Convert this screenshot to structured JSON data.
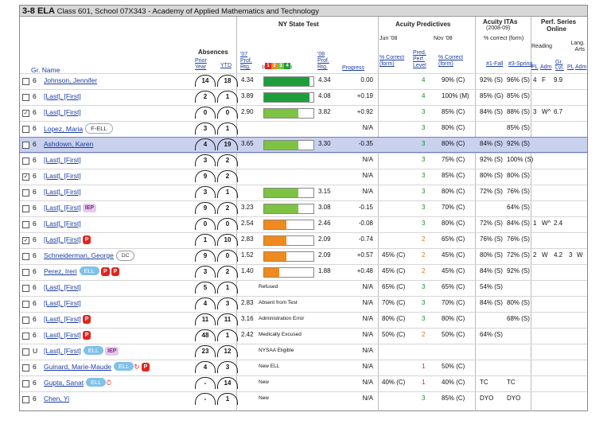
{
  "title": {
    "grade": "3-8 ELA",
    "detail": "Class 601, School 07X343 - Academy of Applied Mathematics and Technology"
  },
  "headers": {
    "nys": "NY State Test",
    "acuity_pred": "Acuity Predictives",
    "acuity_itas": "Acuity ITAs",
    "itas_years": "(2008-09)",
    "itas_sub": "% correct  (form)",
    "perf": "Perf. Series",
    "perf2": "Online",
    "absences": "Absences",
    "prior_year": "Prior Year",
    "ytd": "YTD",
    "gr_name": "Gr. Name",
    "y07": "'07",
    "y08": "'08",
    "prof_rtg": "Prof. Rtg.",
    "progress": "Progress",
    "scale": "10  20  30  40 4.5",
    "jun08": "Jun '08",
    "nov08": "Nov '08",
    "pct_correct": "% Correct (form)",
    "pred_perf": "Pred. Perf. Level",
    "pct_correct2": "% Correct (form)",
    "fall": "#1-Fall",
    "spring": "#3-Spring",
    "reading": "Reading",
    "lang_arts": "Lang. Arts",
    "pl": "PL",
    "adm": "Adm",
    "gr_lvl": "Gr. Lvl.",
    "pl2": "PL",
    "adm2": "Adm",
    "legend": [
      "1",
      "2",
      "3",
      "4"
    ]
  },
  "rows": [
    {
      "cb": "",
      "gr": "6",
      "name": "Johnson, Jennifer",
      "tags": [],
      "prior": "14",
      "ytd": "18",
      "r07": "4.34",
      "bar": "green4",
      "r08": "4.34",
      "prog": "0.00",
      "jun": "",
      "lvl": "4",
      "nov": "90% (C)",
      "fall": "92% (S)",
      "spring": "96% (S)",
      "pl": "4",
      "adm": "F",
      "grl": "9.9",
      "pl2": "",
      "adm2": ""
    },
    {
      "cb": "",
      "gr": "6",
      "name": "[Last], [First]",
      "tags": [],
      "prior": "2",
      "ytd": "1",
      "r07": "3.89",
      "bar": "green4",
      "r08": "4.08",
      "prog": "+0.19",
      "jun": "",
      "lvl": "4",
      "nov": "100% (M)",
      "fall": "85% (G)",
      "spring": "85% (S)",
      "pl": "",
      "adm": "",
      "grl": "",
      "pl2": "",
      "adm2": ""
    },
    {
      "cb": "☑",
      "gr": "6",
      "name": "[Last], [First]",
      "tags": [],
      "prior": "0",
      "ytd": "0",
      "r07": "2.90",
      "bar": "green3",
      "r08": "3.82",
      "prog": "+0.92",
      "jun": "",
      "lvl": "3",
      "nov": "85% (C)",
      "fall": "84% (S)",
      "spring": "88% (S)",
      "pl": "3",
      "adm": "W^",
      "grl": "6.7",
      "pl2": "",
      "adm2": ""
    },
    {
      "cb": "",
      "gr": "6",
      "name": "Lopez, Maria",
      "tags": [
        "F-ELL"
      ],
      "prior": "3",
      "ytd": "1",
      "r07": "",
      "bar": "",
      "r08": "",
      "prog": "N/A",
      "jun": "",
      "lvl": "3",
      "nov": "80% (C)",
      "fall": "",
      "spring": "85% (S)",
      "pl": "",
      "adm": "",
      "grl": "",
      "pl2": "",
      "adm2": ""
    },
    {
      "cb": "",
      "gr": "6",
      "name": "Ashdown, Karen",
      "tags": [],
      "prior": "4",
      "ytd": "19",
      "r07": "3.65",
      "bar": "green3",
      "r08": "3.30",
      "prog": "-0.35",
      "jun": "",
      "lvl": "3",
      "nov": "80% (C)",
      "fall": "84% (S)",
      "spring": "92% (S)",
      "pl": "",
      "adm": "",
      "grl": "",
      "pl2": "",
      "adm2": "",
      "sel": true
    },
    {
      "cb": "",
      "gr": "6",
      "name": "[Last], [First]",
      "tags": [],
      "prior": "3",
      "ytd": "2",
      "r07": "",
      "bar": "",
      "r08": "",
      "prog": "N/A",
      "jun": "",
      "lvl": "3",
      "nov": "75% (C)",
      "fall": "92% (S)",
      "spring": "100% (S)",
      "pl": "",
      "adm": "",
      "grl": "",
      "pl2": "",
      "adm2": ""
    },
    {
      "cb": "☑",
      "gr": "6",
      "name": "[Last], [First]",
      "tags": [],
      "prior": "9",
      "ytd": "2",
      "r07": "",
      "bar": "",
      "r08": "",
      "prog": "N/A",
      "jun": "",
      "lvl": "3",
      "nov": "85% (C)",
      "fall": "80% (S)",
      "spring": "80% (S)",
      "pl": "",
      "adm": "",
      "grl": "",
      "pl2": "",
      "adm2": ""
    },
    {
      "cb": "",
      "gr": "6",
      "name": "[Last], [First]",
      "tags": [],
      "prior": "3",
      "ytd": "1",
      "r07": "",
      "bar": "green3",
      "r08": "3.15",
      "prog": "N/A",
      "jun": "",
      "lvl": "3",
      "nov": "80% (C)",
      "fall": "72% (S)",
      "spring": "76% (S)",
      "pl": "",
      "adm": "",
      "grl": "",
      "pl2": "",
      "adm2": ""
    },
    {
      "cb": "",
      "gr": "6",
      "name": "[Last], [First]",
      "tags": [
        "IEP"
      ],
      "prior": "9",
      "ytd": "2",
      "r07": "3.23",
      "bar": "green3",
      "r08": "3.08",
      "prog": "-0.15",
      "jun": "",
      "lvl": "3",
      "nov": "70% (C)",
      "fall": "",
      "spring": "64% (S)",
      "pl": "",
      "adm": "",
      "grl": "",
      "pl2": "",
      "adm2": ""
    },
    {
      "cb": "",
      "gr": "6",
      "name": "[Last], [First]",
      "tags": [],
      "prior": "0",
      "ytd": "0",
      "r07": "2.54",
      "bar": "orange2",
      "r08": "2.46",
      "prog": "-0.08",
      "jun": "",
      "lvl": "3",
      "nov": "80% (C)",
      "fall": "72% (S)",
      "spring": "84% (S)",
      "pl": "1",
      "adm": "W^",
      "grl": "2.4",
      "pl2": "",
      "adm2": ""
    },
    {
      "cb": "☑",
      "gr": "6",
      "name": "[Last], [First]",
      "tags": [
        "P"
      ],
      "prior": "1",
      "ytd": "10",
      "r07": "2.83",
      "bar": "orange2",
      "r08": "2.09",
      "prog": "-0.74",
      "jun": "",
      "lvl": "2",
      "nov": "65% (C)",
      "fall": "76% (S)",
      "spring": "76% (S)",
      "pl": "",
      "adm": "",
      "grl": "",
      "pl2": "",
      "adm2": ""
    },
    {
      "cb": "",
      "gr": "6",
      "name": "Schneiderman, George",
      "tags": [
        "DC"
      ],
      "prior": "9",
      "ytd": "0",
      "r07": "1.52",
      "bar": "orange2",
      "r08": "2.09",
      "prog": "+0.57",
      "jun": "45% (C)",
      "lvl": "2",
      "nov": "45% (C)",
      "fall": "80% (S)",
      "spring": "72% (S)",
      "pl": "2",
      "adm": "W",
      "grl": "4.2",
      "pl2": "3",
      "adm2": "W"
    },
    {
      "cb": "",
      "gr": "6",
      "name": "Perez, Ireri",
      "tags": [
        "ELL",
        "P",
        "P"
      ],
      "prior": "3",
      "ytd": "2",
      "r07": "1.40",
      "bar": "orange1",
      "r08": "1.88",
      "prog": "+0.48",
      "jun": "45% (C)",
      "lvl": "2",
      "nov": "45% (C)",
      "fall": "84% (S)",
      "spring": "92% (S)",
      "pl": "",
      "adm": "",
      "grl": "",
      "pl2": "",
      "adm2": ""
    },
    {
      "cb": "",
      "gr": "6",
      "name": "[Last], [First]",
      "tags": [],
      "prior": "5",
      "ytd": "1",
      "r07": "",
      "bar": "",
      "r08": "Refused",
      "prog": "N/A",
      "jun": "65% (C)",
      "lvl": "3",
      "nov": "65% (C)",
      "fall": "54% (S)",
      "spring": "",
      "pl": "",
      "adm": "",
      "grl": "",
      "pl2": "",
      "adm2": ""
    },
    {
      "cb": "",
      "gr": "6",
      "name": "[Last], [First]",
      "tags": [],
      "prior": "4",
      "ytd": "3",
      "r07": "2.83",
      "bar": "",
      "r08": "Absent from Test",
      "prog": "N/A",
      "jun": "70% (C)",
      "lvl": "3",
      "nov": "70% (C)",
      "fall": "84% (S)",
      "spring": "80% (S)",
      "pl": "",
      "adm": "",
      "grl": "",
      "pl2": "",
      "adm2": ""
    },
    {
      "cb": "",
      "gr": "6",
      "name": "[Last], [First]",
      "tags": [
        "P"
      ],
      "prior": "11",
      "ytd": "11",
      "r07": "3.16",
      "bar": "",
      "r08": "Administration Error",
      "prog": "N/A",
      "jun": "80% (C)",
      "lvl": "3",
      "nov": "80% (C)",
      "fall": "",
      "spring": "68% (S)",
      "pl": "",
      "adm": "",
      "grl": "",
      "pl2": "",
      "adm2": ""
    },
    {
      "cb": "",
      "gr": "6",
      "name": "[Last], [First]",
      "tags": [
        "P"
      ],
      "prior": "48",
      "ytd": "1",
      "r07": "2.42",
      "bar": "",
      "r08": "Medically Excused",
      "prog": "N/A",
      "jun": "50% (C)",
      "lvl": "2",
      "nov": "50% (C)",
      "fall": "64% (S)",
      "spring": "",
      "pl": "",
      "adm": "",
      "grl": "",
      "pl2": "",
      "adm2": ""
    },
    {
      "cb": "",
      "gr": "U",
      "name": "[Last], [First]",
      "tags": [
        "ELL",
        "IEP"
      ],
      "prior": "23",
      "ytd": "12",
      "r07": "",
      "bar": "",
      "r08": "NYSAA Eligible",
      "prog": "N/A",
      "jun": "",
      "lvl": "",
      "nov": "",
      "fall": "",
      "spring": "",
      "pl": "",
      "adm": "",
      "grl": "",
      "pl2": "",
      "adm2": ""
    },
    {
      "cb": "",
      "gr": "6",
      "name": "Guinard, Marie-Maude",
      "tags": [
        "ELL",
        "↻",
        "P"
      ],
      "prior": "4",
      "ytd": "3",
      "r07": "",
      "bar": "",
      "r08": "New ELL",
      "prog": "N/A",
      "jun": "",
      "lvl": "1",
      "nov": "50% (C)",
      "fall": "",
      "spring": "",
      "pl": "",
      "adm": "",
      "grl": "",
      "pl2": "",
      "adm2": ""
    },
    {
      "cb": "",
      "gr": "6",
      "name": "Gupta, Sanat",
      "tags": [
        "ELL",
        "⏱"
      ],
      "prior": "-",
      "ytd": "14",
      "r07": "",
      "bar": "",
      "r08": "New",
      "prog": "N/A",
      "jun": "40% (C)",
      "lvl": "1",
      "nov": "40% (C)",
      "fall": "TC",
      "spring": "TC",
      "pl": "",
      "adm": "",
      "grl": "",
      "pl2": "",
      "adm2": ""
    },
    {
      "cb": "",
      "gr": "6",
      "name": "Chen, Yi",
      "tags": [],
      "prior": "-",
      "ytd": "1",
      "r07": "",
      "bar": "",
      "r08": "New",
      "prog": "N/A",
      "jun": "",
      "lvl": "3",
      "nov": "85% (C)",
      "fall": "DYO",
      "spring": "DYO",
      "pl": "",
      "adm": "",
      "grl": "",
      "pl2": "",
      "adm2": ""
    }
  ]
}
